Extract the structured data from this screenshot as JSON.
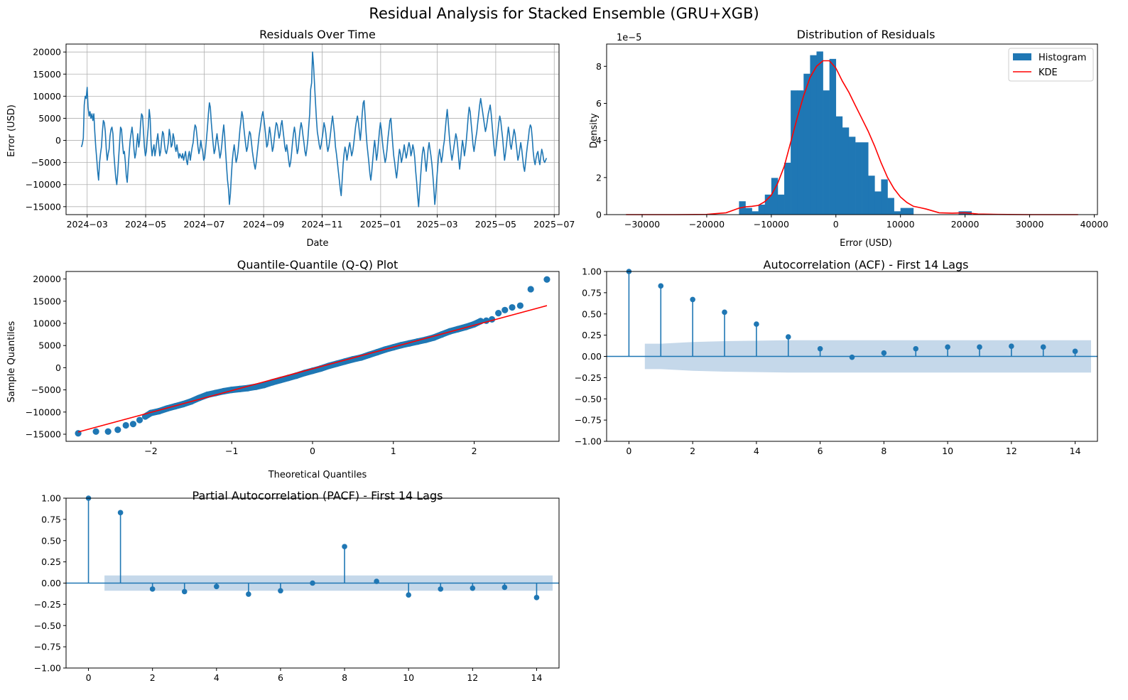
{
  "figure": {
    "title": "Residual Analysis for Stacked Ensemble (GRU+XGB)",
    "line_color": "#1f77b4",
    "red_color": "#ff0000",
    "band_color": "#c5d8ea",
    "grid_color": "#b0b0b0"
  },
  "chart_data": [
    {
      "id": "residuals_time",
      "type": "line",
      "title": "Residuals Over Time",
      "xlabel": "Date",
      "ylabel": "Error (USD)",
      "grid": true,
      "x_ticks": [
        "2024-03",
        "2024-05",
        "2024-07",
        "2024-09",
        "2024-11",
        "2025-01",
        "2025-03",
        "2025-05",
        "2025-07"
      ],
      "xlim": [
        "2024-02-08",
        "2025-07-06"
      ],
      "ylim": [
        -16800,
        21800
      ],
      "y_ticks": [
        -15000,
        -10000,
        -5000,
        0,
        5000,
        10000,
        15000,
        20000
      ],
      "series": [
        {
          "start_date": "2024-02-24",
          "end_date": "2025-06-23",
          "values": [
            -1500,
            -800,
            500,
            8000,
            10000,
            9500,
            12000,
            7500,
            5500,
            6500,
            5000,
            6000,
            4500,
            6000,
            2000,
            -1500,
            -4000,
            -7000,
            -9000,
            -5000,
            -3000,
            -1500,
            2000,
            4500,
            4000,
            2000,
            -2000,
            -4500,
            -3000,
            -2000,
            1000,
            2500,
            3000,
            1500,
            -3000,
            -6000,
            -8500,
            -10000,
            -7500,
            -4000,
            -500,
            3000,
            2500,
            -500,
            -3000,
            -2500,
            -5000,
            -8000,
            -9500,
            -6000,
            -3000,
            0,
            1500,
            3000,
            1000,
            -2000,
            -4000,
            -3000,
            -500,
            1500,
            -1500,
            0,
            4000,
            6000,
            5500,
            2000,
            -1500,
            -3500,
            -2500,
            500,
            3000,
            7000,
            5000,
            -1000,
            -3500,
            -2000,
            -1000,
            -3500,
            -2000,
            0,
            1500,
            -1000,
            -3500,
            -2500,
            0,
            2000,
            1500,
            -1000,
            -2500,
            -3000,
            -2000,
            -500,
            2500,
            1000,
            -1500,
            -1000,
            1500,
            500,
            -1500,
            -2500,
            -1000,
            -2500,
            -4000,
            -3000,
            -3500,
            -4000,
            -3000,
            -4500,
            -3500,
            -2500,
            -4500,
            -5500,
            -3500,
            -2500,
            -4500,
            -3000,
            -1500,
            -500,
            2000,
            3500,
            3000,
            1000,
            -1500,
            -3000,
            -2000,
            0,
            -1500,
            -2500,
            -4500,
            -4000,
            -2000,
            500,
            3000,
            6000,
            8500,
            7500,
            4000,
            1500,
            -1000,
            -3000,
            -2000,
            0,
            1500,
            -500,
            -2000,
            -4000,
            -3000,
            -1000,
            1500,
            3500,
            1000,
            -2500,
            -6000,
            -9000,
            -11000,
            -14500,
            -12000,
            -8000,
            -4500,
            -2500,
            -1000,
            -3000,
            -5000,
            -4000,
            -2500,
            0,
            2500,
            4500,
            6500,
            5500,
            3000,
            1000,
            -1000,
            -2500,
            -1500,
            500,
            2000,
            1500,
            -500,
            -2500,
            -4000,
            -5500,
            -6500,
            -5000,
            -3000,
            -1000,
            1000,
            2500,
            4000,
            5500,
            6500,
            5000,
            3000,
            1000,
            -1500,
            -1000,
            1000,
            3000,
            1500,
            -500,
            -2500,
            -1500,
            500,
            2500,
            4000,
            3500,
            2000,
            500,
            1500,
            3500,
            4500,
            2500,
            500,
            -1500,
            -2500,
            -1000,
            -2500,
            -4500,
            -6000,
            -5000,
            -3000,
            -500,
            1500,
            3000,
            1500,
            -1000,
            -3000,
            -2000,
            500,
            2500,
            4000,
            3000,
            1000,
            -500,
            -2500,
            -3500,
            -2000,
            0,
            3000,
            6000,
            11500,
            13000,
            20000,
            17000,
            13000,
            9000,
            5000,
            2000,
            500,
            -1000,
            -2000,
            -1000,
            500,
            2000,
            4000,
            3000,
            1500,
            -1000,
            -2500,
            -1500,
            0,
            2000,
            4000,
            5500,
            3500,
            1500,
            -1500,
            -3000,
            -5000,
            -7000,
            -9000,
            -11000,
            -12500,
            -9000,
            -5500,
            -3000,
            -1500,
            -2500,
            -4500,
            -3000,
            -1500,
            -500,
            -2000,
            -3500,
            -2500,
            -1000,
            1000,
            3000,
            4500,
            5500,
            4000,
            2000,
            0,
            2500,
            6000,
            8500,
            9000,
            5500,
            2000,
            -1000,
            -3000,
            -5000,
            -7500,
            -9000,
            -7000,
            -4500,
            -2000,
            0,
            -2000,
            -4500,
            -3000,
            -500,
            2000,
            4000,
            2500,
            0,
            -2000,
            -3500,
            -5000,
            -4000,
            -2000,
            500,
            2500,
            4500,
            5000,
            2000,
            -1000,
            -3500,
            -5000,
            -7000,
            -8500,
            -6500,
            -4000,
            -2000,
            -3000,
            -5000,
            -4000,
            -2500,
            -1000,
            -2500,
            -4000,
            -3000,
            -1500,
            -500,
            -1500,
            -3500,
            -2500,
            -1000,
            -2000,
            -4000,
            -7000,
            -9500,
            -12500,
            -15000,
            -12000,
            -8500,
            -5500,
            -3000,
            -1500,
            -2500,
            -5000,
            -7000,
            -4500,
            -2000,
            -500,
            -2000,
            -3500,
            -5500,
            -8000,
            -11000,
            -14500,
            -12000,
            -9000,
            -6000,
            -3500,
            -2000,
            -3500,
            -5000,
            -3500,
            -1500,
            0,
            2500,
            5000,
            7000,
            4500,
            1500,
            -1000,
            -3000,
            -4500,
            -3000,
            -1500,
            0,
            1500,
            500,
            -1500,
            -4000,
            -6500,
            -4500,
            -2000,
            0,
            -1500,
            -3500,
            -2000,
            0,
            2500,
            5500,
            7500,
            6500,
            4000,
            1500,
            -1000,
            -2500,
            -1000,
            500,
            2000,
            4000,
            6000,
            8000,
            9500,
            8000,
            6500,
            5000,
            3500,
            2000,
            3000,
            4500,
            6000,
            7000,
            8000,
            6000,
            3500,
            1000,
            -1500,
            -3500,
            -2000,
            0,
            2000,
            4000,
            5500,
            4500,
            2500,
            500,
            -2000,
            -4500,
            -3000,
            -1000,
            1000,
            3000,
            1500,
            -1000,
            -2000,
            -500,
            1000,
            2500,
            1500,
            -500,
            -2500,
            -4500,
            -3500,
            -2000,
            -500,
            -2000,
            -4000,
            -6000,
            -7000,
            -5000,
            -3000,
            -1000,
            500,
            2500,
            3500,
            3000,
            500,
            -2500,
            -4500,
            -5500,
            -4000,
            -3000,
            -2500,
            -4500,
            -5500,
            -3500,
            -2000,
            -3000,
            -4500,
            -5000,
            -4500,
            -4000
          ]
        }
      ]
    },
    {
      "id": "residual_distribution",
      "type": "bar",
      "title": "Distribution of Residuals",
      "xlabel": "Error (USD)",
      "ylabel": "Density",
      "y_scale_label": "1e−5",
      "xlim": [
        -35500,
        40500
      ],
      "ylim": [
        0,
        9.2
      ],
      "x_ticks": [
        -30000,
        -20000,
        -10000,
        0,
        10000,
        20000,
        30000,
        40000
      ],
      "y_ticks": [
        0,
        2,
        4,
        6,
        8
      ],
      "legend": {
        "position": "top-right",
        "entries": [
          "Histogram",
          "KDE"
        ]
      },
      "series": [
        {
          "name": "Histogram",
          "bin_start": -15000,
          "bin_width": 1000,
          "values": [
            0.72,
            0.36,
            0.18,
            0.54,
            1.08,
            1.98,
            1.08,
            2.8,
            6.7,
            6.7,
            7.6,
            8.6,
            8.8,
            6.7,
            8.4,
            5.3,
            4.7,
            4.2,
            3.9,
            3.9,
            2.1,
            1.25,
            1.9,
            0.9,
            0.18,
            0.36,
            0.36,
            0,
            0,
            0,
            0,
            0,
            0,
            0,
            0.18,
            0.18
          ]
        },
        {
          "name": "KDE",
          "x": [
            -32500,
            -25000,
            -20000,
            -17000,
            -15000,
            -14000,
            -13000,
            -12000,
            -11000,
            -10000,
            -9000,
            -8000,
            -7000,
            -6000,
            -5000,
            -4000,
            -3000,
            -2000,
            -1000,
            0,
            1000,
            2000,
            3000,
            4000,
            5000,
            6000,
            7000,
            8000,
            9000,
            10000,
            11000,
            12000,
            13000,
            14000,
            15000,
            16000,
            18000,
            20000,
            22000,
            25000,
            30000,
            37500
          ],
          "values": [
            0,
            0,
            0.01,
            0.1,
            0.35,
            0.42,
            0.45,
            0.5,
            0.7,
            1.05,
            1.7,
            2.6,
            3.9,
            5.2,
            6.4,
            7.4,
            8.0,
            8.3,
            8.3,
            7.9,
            7.2,
            6.6,
            5.9,
            5.2,
            4.5,
            3.7,
            2.8,
            2.0,
            1.4,
            0.95,
            0.65,
            0.45,
            0.38,
            0.3,
            0.2,
            0.1,
            0.08,
            0.1,
            0.03,
            0.01,
            0,
            0
          ]
        }
      ]
    },
    {
      "id": "qq_plot",
      "type": "scatter",
      "title": "Quantile-Quantile (Q-Q) Plot",
      "xlabel": "Theoretical Quantiles",
      "ylabel": "Sample Quantiles",
      "xlim": [
        -3.05,
        3.05
      ],
      "ylim": [
        -16600,
        21700
      ],
      "x_ticks": [
        -2,
        -1,
        0,
        1,
        2
      ],
      "y_ticks": [
        -15000,
        -10000,
        -5000,
        0,
        5000,
        10000,
        15000,
        20000
      ],
      "fit_line": {
        "x": [
          -2.9,
          2.9
        ],
        "y": [
          -14500,
          14000
        ]
      },
      "points": [
        [
          -2.9,
          -14800
        ],
        [
          -2.68,
          -14400
        ],
        [
          -2.53,
          -14400
        ],
        [
          -2.41,
          -14000
        ],
        [
          -2.31,
          -13000
        ],
        [
          -2.22,
          -12700
        ],
        [
          -2.14,
          -11800
        ],
        [
          -2.07,
          -11000
        ],
        [
          -2.0,
          -10200
        ],
        [
          -1.9,
          -9800
        ],
        [
          -1.8,
          -9200
        ],
        [
          -1.7,
          -8700
        ],
        [
          -1.6,
          -8200
        ],
        [
          -1.5,
          -7600
        ],
        [
          -1.4,
          -6800
        ],
        [
          -1.3,
          -6100
        ],
        [
          -1.2,
          -5700
        ],
        [
          -1.1,
          -5300
        ],
        [
          -1.0,
          -5000
        ],
        [
          -0.9,
          -4800
        ],
        [
          -0.8,
          -4600
        ],
        [
          -0.7,
          -4300
        ],
        [
          -0.6,
          -3900
        ],
        [
          -0.5,
          -3300
        ],
        [
          -0.4,
          -2800
        ],
        [
          -0.3,
          -2300
        ],
        [
          -0.2,
          -1800
        ],
        [
          -0.1,
          -1200
        ],
        [
          0.0,
          -700
        ],
        [
          0.1,
          -200
        ],
        [
          0.2,
          400
        ],
        [
          0.3,
          900
        ],
        [
          0.4,
          1400
        ],
        [
          0.5,
          1900
        ],
        [
          0.6,
          2300
        ],
        [
          0.7,
          2900
        ],
        [
          0.8,
          3500
        ],
        [
          0.9,
          4100
        ],
        [
          1.0,
          4600
        ],
        [
          1.1,
          5100
        ],
        [
          1.2,
          5500
        ],
        [
          1.3,
          5900
        ],
        [
          1.4,
          6300
        ],
        [
          1.5,
          6800
        ],
        [
          1.6,
          7500
        ],
        [
          1.7,
          8200
        ],
        [
          1.8,
          8700
        ],
        [
          1.9,
          9200
        ],
        [
          2.0,
          9800
        ],
        [
          2.08,
          10500
        ],
        [
          2.15,
          10600
        ],
        [
          2.22,
          10900
        ],
        [
          2.3,
          12300
        ],
        [
          2.38,
          13000
        ],
        [
          2.47,
          13600
        ],
        [
          2.57,
          14000
        ],
        [
          2.7,
          17700
        ],
        [
          2.9,
          19900
        ]
      ]
    },
    {
      "id": "acf",
      "type": "stem",
      "title": "Autocorrelation (ACF) - First 14 Lags",
      "xlim": [
        -0.7,
        14.7
      ],
      "ylim": [
        -1,
        1
      ],
      "x_ticks": [
        0,
        2,
        4,
        6,
        8,
        10,
        12,
        14
      ],
      "y_ticks": [
        "-1.00",
        "-0.75",
        "-0.50",
        "-0.25",
        "0.00",
        "0.25",
        "0.50",
        "0.75",
        "1.00"
      ],
      "lags": [
        0,
        1,
        2,
        3,
        4,
        5,
        6,
        7,
        8,
        9,
        10,
        11,
        12,
        13,
        14
      ],
      "values": [
        1.0,
        0.83,
        0.67,
        0.52,
        0.38,
        0.23,
        0.09,
        -0.01,
        0.04,
        0.09,
        0.11,
        0.11,
        0.12,
        0.11,
        0.06
      ],
      "confidence": [
        0.09,
        0.15,
        0.17,
        0.18,
        0.185,
        0.19,
        0.19,
        0.19,
        0.19,
        0.19,
        0.19,
        0.19,
        0.19,
        0.19,
        0.19
      ]
    },
    {
      "id": "pacf",
      "type": "stem",
      "title": "Partial Autocorrelation (PACF) - First 14 Lags",
      "xlim": [
        -0.7,
        14.7
      ],
      "ylim": [
        -1,
        1
      ],
      "x_ticks": [
        0,
        2,
        4,
        6,
        8,
        10,
        12,
        14
      ],
      "y_ticks": [
        "-1.00",
        "-0.75",
        "-0.50",
        "-0.25",
        "0.00",
        "0.25",
        "0.50",
        "0.75",
        "1.00"
      ],
      "lags": [
        0,
        1,
        2,
        3,
        4,
        5,
        6,
        7,
        8,
        9,
        10,
        11,
        12,
        13,
        14
      ],
      "values": [
        1.0,
        0.83,
        -0.07,
        -0.1,
        -0.04,
        -0.13,
        -0.09,
        0.0,
        0.43,
        0.02,
        -0.14,
        -0.07,
        -0.06,
        -0.05,
        -0.17
      ],
      "confidence": [
        0.09,
        0.09,
        0.09,
        0.09,
        0.09,
        0.09,
        0.09,
        0.09,
        0.09,
        0.09,
        0.09,
        0.09,
        0.09,
        0.09,
        0.09
      ]
    }
  ]
}
